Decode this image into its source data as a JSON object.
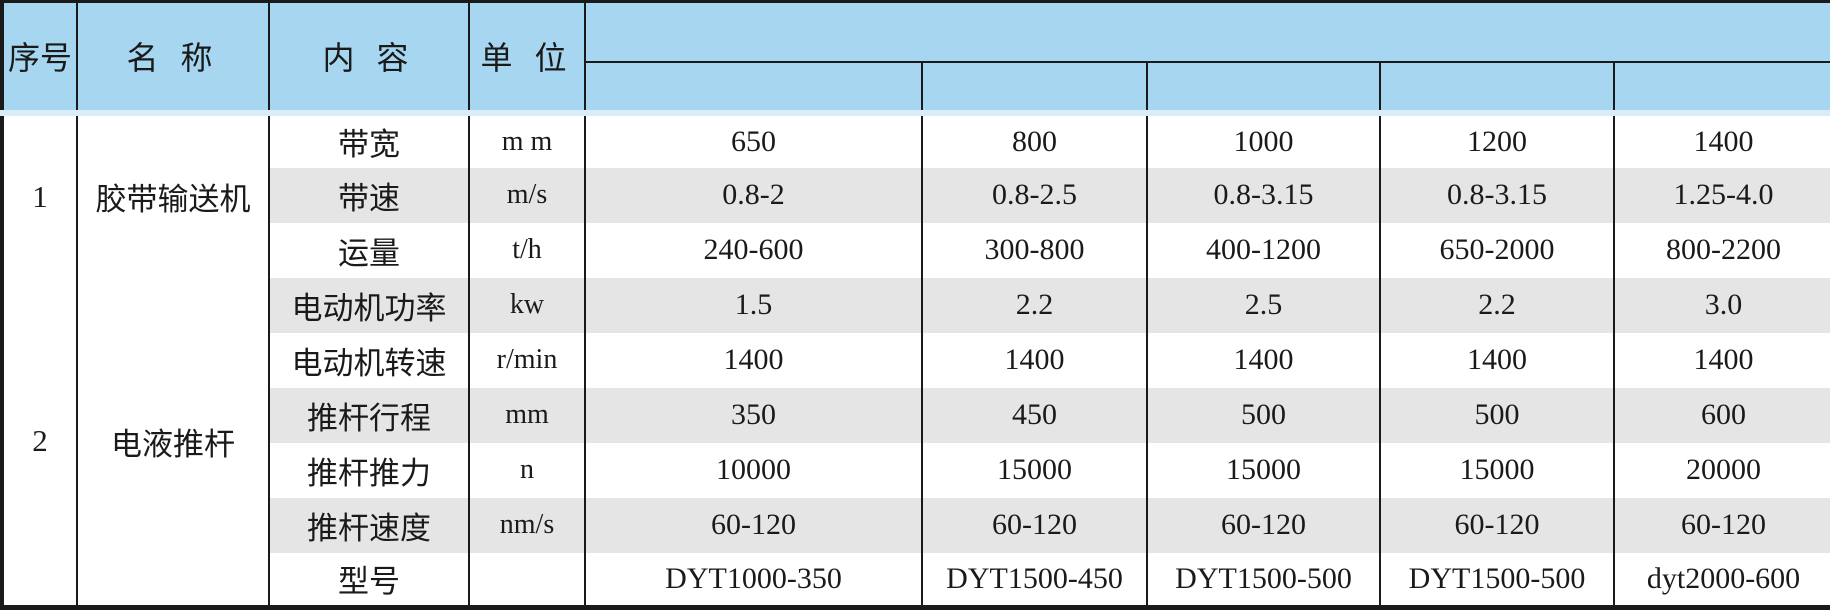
{
  "table": {
    "header": {
      "serial": "序号",
      "name": "名 称",
      "content": "内 容",
      "unit": "单 位"
    },
    "groups": [
      {
        "serial": "1",
        "name": "胶带输送机",
        "rows": [
          {
            "content": "带宽",
            "unit": "m m",
            "values": [
              "650",
              "800",
              "1000",
              "1200",
              "1400"
            ]
          },
          {
            "content": "带速",
            "unit": "m/s",
            "values": [
              "0.8-2",
              "0.8-2.5",
              "0.8-3.15",
              "0.8-3.15",
              "1.25-4.0"
            ]
          },
          {
            "content": "运量",
            "unit": "t/h",
            "values": [
              "240-600",
              "300-800",
              "400-1200",
              "650-2000",
              "800-2200"
            ]
          }
        ]
      },
      {
        "serial": "2",
        "name": "电液推杆",
        "rows": [
          {
            "content": "电动机功率",
            "unit": "kw",
            "values": [
              "1.5",
              "2.2",
              "2.5",
              "2.2",
              "3.0"
            ]
          },
          {
            "content": "电动机转速",
            "unit": "r/min",
            "values": [
              "1400",
              "1400",
              "1400",
              "1400",
              "1400"
            ]
          },
          {
            "content": "推杆行程",
            "unit": "mm",
            "values": [
              "350",
              "450",
              "500",
              "500",
              "600"
            ]
          },
          {
            "content": "推杆推力",
            "unit": "n",
            "values": [
              "10000",
              "15000",
              "15000",
              "15000",
              "20000"
            ]
          },
          {
            "content": "推杆速度",
            "unit": "nm/s",
            "values": [
              "60-120",
              "60-120",
              "60-120",
              "60-120",
              "60-120"
            ]
          },
          {
            "content": "型号",
            "unit": "",
            "values": [
              "DYT1000-350",
              "DYT1500-450",
              "DYT1500-500",
              "DYT1500-500",
              "dyt2000-600"
            ]
          }
        ]
      }
    ],
    "colors": {
      "header_blue": "#a7d6f0",
      "row_gray": "#e5e5e5",
      "row_white": "#ffffff",
      "border": "#1a1a1a",
      "text": "#1a1a1a"
    }
  }
}
